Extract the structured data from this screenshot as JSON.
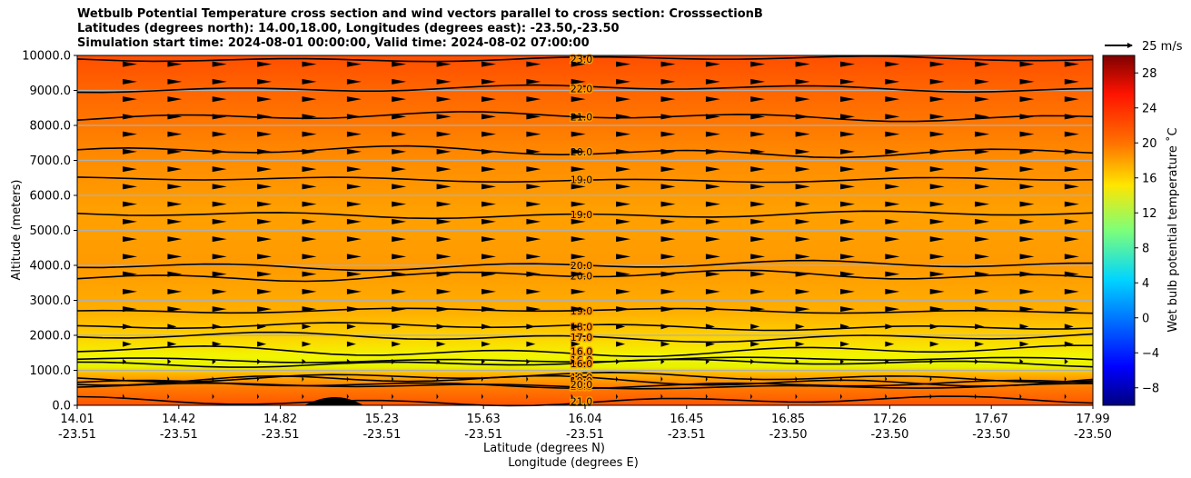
{
  "chart_data": {
    "type": "contour",
    "title_lines": [
      "Wetbulb Potential Temperature cross section and wind vectors parallel to cross section: CrosssectionB",
      "Latitudes (degrees north): 14.00,18.00, Longitudes (degrees east): -23.50,-23.50",
      "Simulation start time: 2024-08-01 00:00:00, Valid time: 2024-08-02 07:00:00"
    ],
    "ylabel": "Altitude (meters)",
    "xlabel": "Latitude (degrees N)",
    "xlabel2": "Longitude (degrees E)",
    "ylim": [
      0,
      10000
    ],
    "y_ticks": [
      "0.0",
      "1000.0",
      "2000.0",
      "3000.0",
      "4000.0",
      "5000.0",
      "6000.0",
      "7000.0",
      "8000.0",
      "9000.0",
      "10000.0"
    ],
    "x_ticks": [
      {
        "lat": "14.01",
        "lon": "-23.51"
      },
      {
        "lat": "14.42",
        "lon": "-23.51"
      },
      {
        "lat": "14.82",
        "lon": "-23.51"
      },
      {
        "lat": "15.23",
        "lon": "-23.51"
      },
      {
        "lat": "15.63",
        "lon": "-23.51"
      },
      {
        "lat": "16.04",
        "lon": "-23.51"
      },
      {
        "lat": "16.45",
        "lon": "-23.51"
      },
      {
        "lat": "16.85",
        "lon": "-23.50"
      },
      {
        "lat": "17.26",
        "lon": "-23.50"
      },
      {
        "lat": "17.67",
        "lon": "-23.50"
      },
      {
        "lat": "17.99",
        "lon": "-23.50"
      }
    ],
    "grid": "horizontal",
    "colorbar": {
      "label": "Wet bulb potential temperature $^\\circ$C",
      "label_display": "Wet bulb potential temperature ˚C",
      "range": [
        -10,
        30
      ],
      "ticks": [
        "28",
        "24",
        "20",
        "16",
        "12",
        "8",
        "4",
        "0",
        "−4",
        "−8"
      ],
      "colormap": "jet"
    },
    "quiver_key": "25 m/s",
    "contour_levels": [
      {
        "value": 23.0,
        "label": "23.0",
        "altitude": 9900
      },
      {
        "value": 22.0,
        "label": "22.0",
        "altitude": 9050
      },
      {
        "value": 21.0,
        "label": "21.0",
        "altitude": 8250
      },
      {
        "value": 20.0,
        "label": "20.0",
        "altitude": 7250
      },
      {
        "value": 19.0,
        "label": "19.0",
        "altitude": 6450
      },
      {
        "value": 19.0,
        "label": "19.0",
        "altitude": 5450
      },
      {
        "value": 20.0,
        "label": "20.0",
        "altitude": 4000
      },
      {
        "value": 20.0,
        "label": "20.0",
        "altitude": 3700
      },
      {
        "value": 19.0,
        "label": "19.0",
        "altitude": 2700
      },
      {
        "value": 18.0,
        "label": "18.0",
        "altitude": 2250
      },
      {
        "value": 17.0,
        "label": "17.0",
        "altitude": 1950
      },
      {
        "value": 16.0,
        "label": "16.0",
        "altitude": 1550
      },
      {
        "value": 16.0,
        "label": "16.0",
        "altitude": 1300
      },
      {
        "value": 16.0,
        "label": "16.0",
        "altitude": 1200
      },
      {
        "value": 18.0,
        "label": "18.0",
        "altitude": 800
      },
      {
        "value": 19.0,
        "label": "19.0",
        "altitude": 700
      },
      {
        "value": 20.0,
        "label": "20.0",
        "altitude": 550
      },
      {
        "value": 20.0,
        "label": "20.0",
        "altitude": 600
      },
      {
        "value": 21.0,
        "label": "21.0",
        "altitude": 120
      }
    ],
    "wind": "eastward (positive, parallel to cross section), ~25 m/s at upper levels, weak near surface"
  },
  "colors": {
    "background_mid": "#ff9a00",
    "upper": "#ff5000",
    "lower_yellow": "#eef500",
    "contour": "#000000"
  }
}
